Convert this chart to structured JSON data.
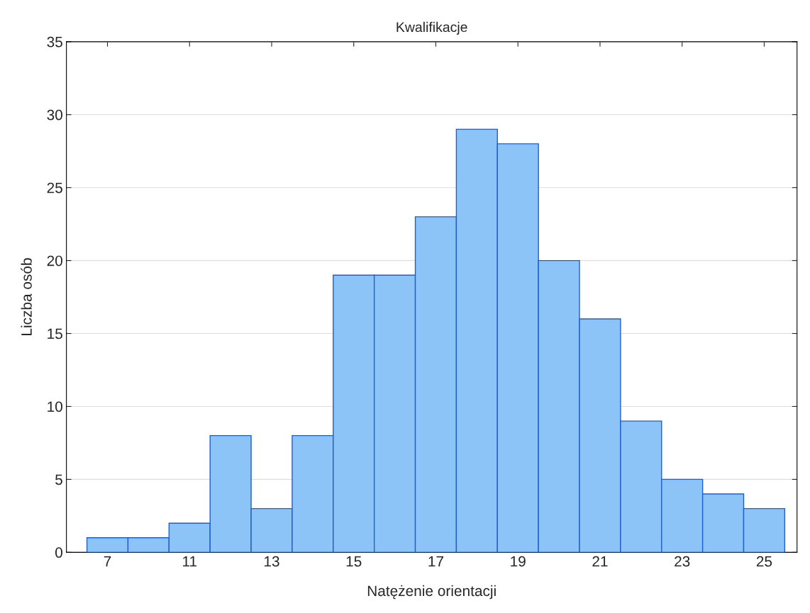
{
  "chart_data": {
    "type": "bar",
    "title": "Kwalifikacje",
    "xlabel": "Natężenie orientacji",
    "ylabel": "Liczba osób",
    "categories": [
      "7",
      null,
      "11",
      null,
      "13",
      null,
      "15",
      null,
      "17",
      null,
      "19",
      null,
      "21",
      null,
      "23",
      null,
      "25"
    ],
    "values": [
      1,
      1,
      2,
      8,
      3,
      8,
      19,
      19,
      23,
      29,
      28,
      20,
      16,
      9,
      5,
      4,
      3
    ],
    "color": "#8cc4f8",
    "ylim": [
      0,
      35
    ],
    "yticks": [
      0,
      5,
      10,
      15,
      20,
      25,
      30,
      35
    ],
    "grid": "y"
  }
}
